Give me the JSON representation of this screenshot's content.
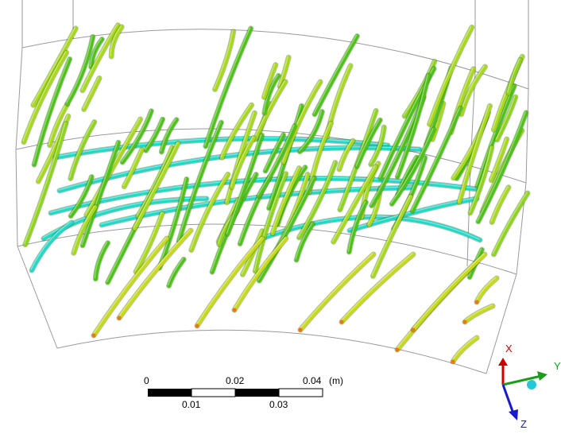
{
  "scale_bar": {
    "unit": "(m)",
    "top_ticks": [
      "0",
      "0.02",
      "0.04"
    ],
    "bottom_ticks": [
      "0.01",
      "0.03"
    ]
  },
  "triad": {
    "x_label": "X",
    "y_label": "Y",
    "z_label": "Z",
    "x_color": "#cc0000",
    "y_color": "#1a9e1a",
    "z_color": "#1a1acc"
  },
  "colors": {
    "fiber_green": "#4fc21a",
    "fiber_yellow_green": "#a8d81a",
    "fiber_cyan": "#22d8c8",
    "fiber_tip_orange": "#e87a10",
    "domain_outline": "#9a9a9a"
  }
}
